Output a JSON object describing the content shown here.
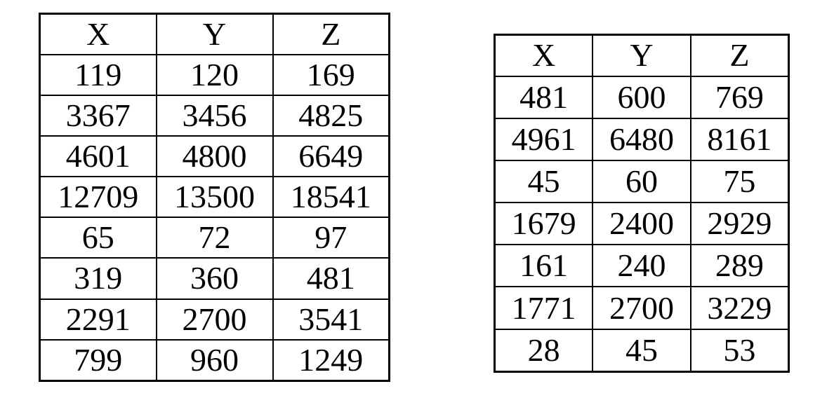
{
  "page": {
    "background_color": "#ffffff",
    "text_color": "#000000",
    "border_color": "#000000"
  },
  "tables": [
    {
      "name": "left-table",
      "headers": [
        "X",
        "Y",
        "Z"
      ],
      "rows": [
        [
          "119",
          "120",
          "169"
        ],
        [
          "3367",
          "3456",
          "4825"
        ],
        [
          "4601",
          "4800",
          "6649"
        ],
        [
          "12709",
          "13500",
          "18541"
        ],
        [
          "65",
          "72",
          "97"
        ],
        [
          "319",
          "360",
          "481"
        ],
        [
          "2291",
          "2700",
          "3541"
        ],
        [
          "799",
          "960",
          "1249"
        ]
      ]
    },
    {
      "name": "right-table",
      "headers": [
        "X",
        "Y",
        "Z"
      ],
      "rows": [
        [
          "481",
          "600",
          "769"
        ],
        [
          "4961",
          "6480",
          "8161"
        ],
        [
          "45",
          "60",
          "75"
        ],
        [
          "1679",
          "2400",
          "2929"
        ],
        [
          "161",
          "240",
          "289"
        ],
        [
          "1771",
          "2700",
          "3229"
        ],
        [
          "28",
          "45",
          "53"
        ]
      ]
    }
  ]
}
